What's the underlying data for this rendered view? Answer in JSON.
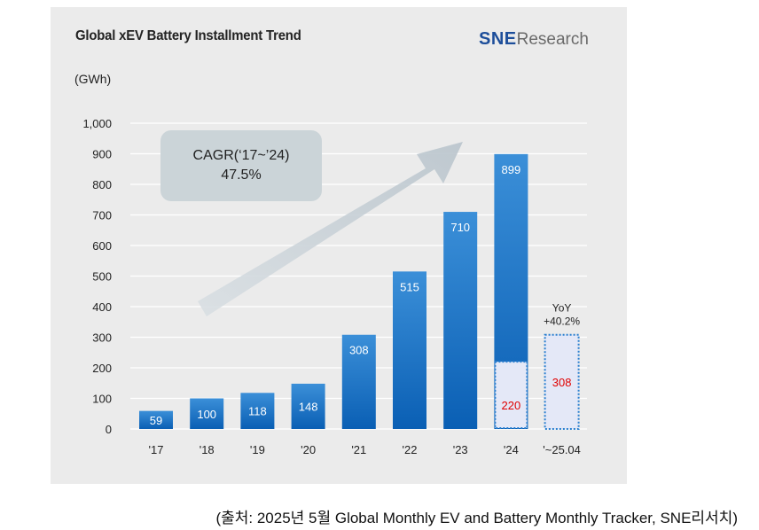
{
  "chart_data": {
    "type": "bar",
    "title": "Global xEV Battery Installment Trend",
    "ylabel": "(GWh)",
    "ylim": [
      0,
      1000
    ],
    "yticks": [
      "0",
      "100",
      "200",
      "300",
      "400",
      "500",
      "600",
      "700",
      "800",
      "900",
      "1,000"
    ],
    "categories": [
      "'17",
      "'18",
      "'19",
      "'20",
      "'21",
      "'22",
      "'23",
      "'24",
      "'~25.04"
    ],
    "values": [
      59,
      100,
      118,
      148,
      308,
      515,
      710,
      899,
      308
    ],
    "value_labels": [
      "59",
      "100",
      "118",
      "148",
      "308",
      "515",
      "710",
      "899",
      "308"
    ],
    "highlight_segment": {
      "category": "'24",
      "value": 220,
      "label": "220"
    },
    "projection": {
      "category": "'~25.04",
      "value": 308,
      "label": "308",
      "note_line1": "YoY",
      "note_line2": "+40.2%"
    },
    "cagr_box": {
      "line1": "CAGR(‘17~’24)",
      "line2": "47.5%"
    },
    "grid": true
  },
  "logo": {
    "sne": "SNE",
    "research": "Research"
  },
  "source_note": "(출처: 2025년  5월  Global Monthly EV and Battery Monthly Tracker, SNE리서치)",
  "colors": {
    "bar_top": "#3b8fd8",
    "bar_bottom": "#0a5fb4",
    "projection_fill": "#e4e8f7",
    "projection_border": "#2a7fd0",
    "projection_text": "#e00000",
    "panel": "#ebebeb",
    "arrow": "#c8d1d8",
    "cagr_box": "#cbd4d8"
  }
}
